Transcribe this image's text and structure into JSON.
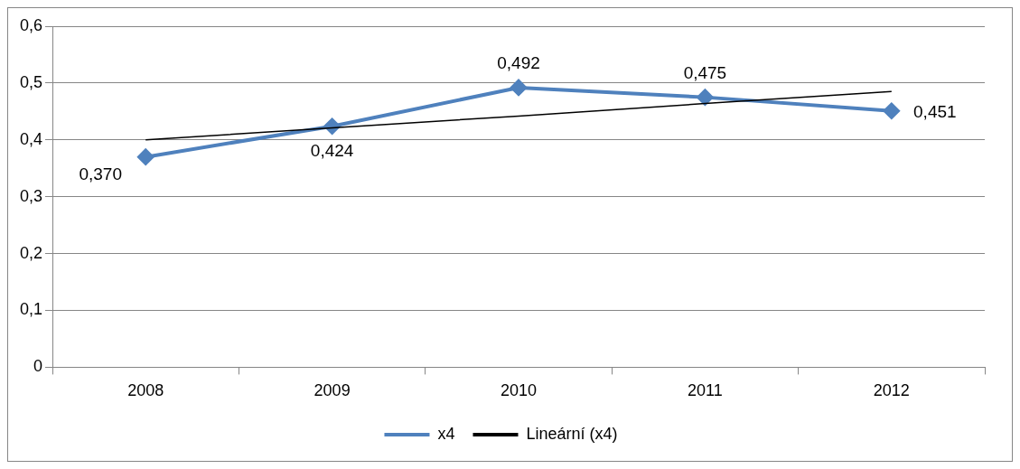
{
  "chart_data": {
    "type": "line",
    "categories": [
      "2008",
      "2009",
      "2010",
      "2011",
      "2012"
    ],
    "series": [
      {
        "name": "x4",
        "color": "#4f81bd",
        "values": [
          0.37,
          0.424,
          0.492,
          0.475,
          0.451
        ],
        "marker": "diamond",
        "value_labels": [
          "0,370",
          "0,424",
          "0,492",
          "0,475",
          "0,451"
        ]
      },
      {
        "name": "Lineární (x4)",
        "color": "#000000",
        "values": [
          0.4,
          0.421,
          0.442,
          0.464,
          0.485
        ],
        "marker": "none"
      }
    ],
    "ylim": [
      0,
      0.6
    ],
    "yticks": [
      {
        "value": 0,
        "label": "0"
      },
      {
        "value": 0.1,
        "label": "0,1"
      },
      {
        "value": 0.2,
        "label": "0,2"
      },
      {
        "value": 0.3,
        "label": "0,3"
      },
      {
        "value": 0.4,
        "label": "0,4"
      },
      {
        "value": 0.5,
        "label": "0,5"
      },
      {
        "value": 0.6,
        "label": "0,6"
      }
    ],
    "grid": "y",
    "legend": "bottom"
  }
}
